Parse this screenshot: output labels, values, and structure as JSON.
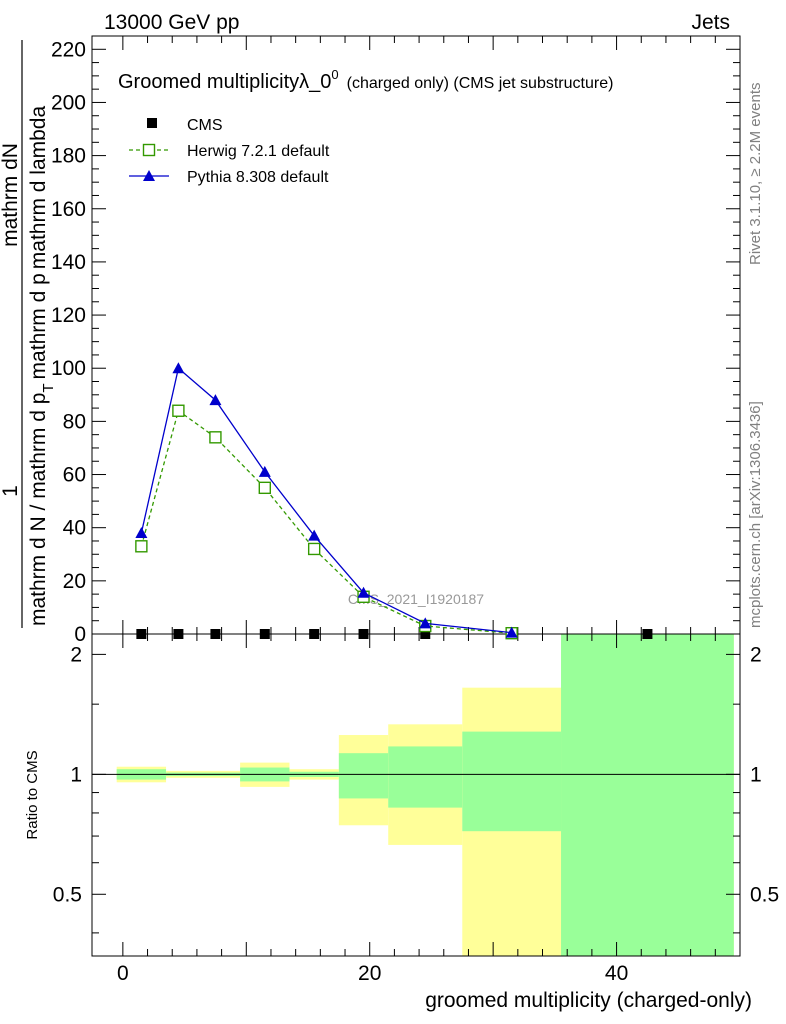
{
  "header": {
    "left": "13000 GeV pp",
    "right": "Jets"
  },
  "side_labels": {
    "rivet": "Rivet 3.1.10, ≥ 2.2M events",
    "mcplots": "mcplots.cern.ch [arXiv:1306.3436]"
  },
  "watermark": "CMS_2021_I1920187",
  "chart_data": [
    {
      "type": "line",
      "title_main": "Groomed multiplicityλ_0",
      "title_sup": "0",
      "title_small": "(charged only) (CMS jet substructure)",
      "ylabel_numerator": "mathrm dN",
      "ylabel_numerator_lead": "1",
      "ylabel_denominator_main": "mathrm d N / mathrm d p",
      "ylabel_denominator_rest": "mathrm d p",
      "ylabel_denominator_tail": "mathrm d lambda",
      "ylabel_denominator_sub": "T",
      "xlim": [
        -2.5,
        50
      ],
      "ylim": [
        0,
        225
      ],
      "yticks": [
        0,
        20,
        40,
        60,
        80,
        100,
        120,
        140,
        160,
        180,
        200,
        220
      ],
      "ytick_labels": [
        "0",
        "20",
        "40",
        "60",
        "80",
        "100",
        "120",
        "140",
        "160",
        "180",
        "200",
        "220"
      ],
      "legend": [
        "CMS",
        "Herwig 7.2.1 default",
        "Pythia 8.308 default"
      ],
      "series": [
        {
          "name": "CMS",
          "marker": "square",
          "color": "#000000",
          "x": [
            1.5,
            4.5,
            7.5,
            11.5,
            15.5,
            19.5,
            24.5,
            31.5,
            42.5
          ],
          "y": [
            0,
            0,
            0,
            0,
            0,
            0,
            0,
            0,
            0
          ]
        },
        {
          "name": "Herwig 7.2.1 default",
          "marker": "open-square",
          "line": "dashed",
          "color": "#339900",
          "x": [
            1.5,
            4.5,
            7.5,
            11.5,
            15.5,
            19.5,
            24.5,
            31.5
          ],
          "y": [
            33,
            84,
            74,
            55,
            32,
            14,
            3,
            0.3
          ]
        },
        {
          "name": "Pythia 8.308 default",
          "marker": "triangle",
          "line": "solid",
          "color": "#0000cc",
          "x": [
            1.5,
            4.5,
            7.5,
            11.5,
            15.5,
            19.5,
            24.5,
            31.5
          ],
          "y": [
            38,
            100,
            88,
            61,
            37,
            15.5,
            4,
            0.5
          ]
        }
      ]
    },
    {
      "type": "area",
      "ylabel": "Ratio to CMS",
      "xlabel": "groomed multiplicity (charged-only)",
      "xlim": [
        -2.5,
        50
      ],
      "ylim": [
        0.35,
        2.25
      ],
      "xticks": [
        0,
        20,
        40
      ],
      "xtick_labels": [
        "0",
        "20",
        "40"
      ],
      "yticks": [
        0.5,
        1,
        2
      ],
      "ytick_labels": [
        "0.5",
        "1",
        "2"
      ],
      "reference_line": 1,
      "bands": [
        {
          "x0": -0.5,
          "x1": 3.5,
          "yellow": [
            0.955,
            1.045
          ],
          "green": [
            0.97,
            1.03
          ]
        },
        {
          "x0": 3.5,
          "x1": 9.5,
          "yellow": [
            0.98,
            1.02
          ],
          "green": [
            0.99,
            1.01
          ]
        },
        {
          "x0": 9.5,
          "x1": 13.5,
          "yellow": [
            0.93,
            1.07
          ],
          "green": [
            0.96,
            1.04
          ]
        },
        {
          "x0": 13.5,
          "x1": 17.5,
          "yellow": [
            0.97,
            1.03
          ],
          "green": [
            0.985,
            1.015
          ]
        },
        {
          "x0": 17.5,
          "x1": 21.5,
          "yellow": [
            0.745,
            1.255
          ],
          "green": [
            0.87,
            1.13
          ]
        },
        {
          "x0": 21.5,
          "x1": 27.5,
          "yellow": [
            0.665,
            1.335
          ],
          "green": [
            0.825,
            1.175
          ]
        },
        {
          "x0": 27.5,
          "x1": 35.5,
          "yellow": [
            0.35,
            1.65
          ],
          "green": [
            0.72,
            1.28
          ]
        },
        {
          "x0": 35.5,
          "x1": 49.5,
          "yellow": [
            0.35,
            2.25
          ],
          "green": [
            0.35,
            2.25
          ]
        }
      ]
    }
  ],
  "colors": {
    "band_yellow": "#ffff99",
    "band_green": "#99ff99"
  }
}
